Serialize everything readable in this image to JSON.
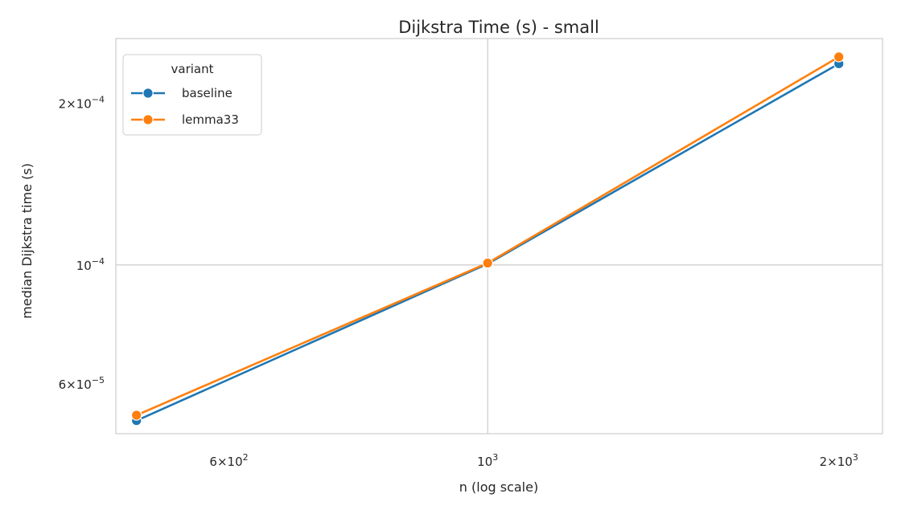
{
  "chart_data": {
    "type": "line",
    "title": "Dijkstra Time (s) - small",
    "xlabel": "n (log scale)",
    "ylabel": "median Dijkstra time (s)",
    "x_scale": "log",
    "y_scale": "log",
    "xlim": [
      480,
      2180
    ],
    "ylim": [
      4.85e-05,
      0.000264
    ],
    "x_ticks": [
      {
        "value": 600,
        "mantissa": "6",
        "exp": "2"
      },
      {
        "value": 1000,
        "mantissa": "",
        "exp": "3"
      },
      {
        "value": 2000,
        "mantissa": "2",
        "exp": "3"
      }
    ],
    "y_ticks": [
      {
        "value": 6e-05,
        "mantissa": "6",
        "exp": "−5"
      },
      {
        "value": 0.0001,
        "mantissa": "",
        "exp": "−4"
      },
      {
        "value": 0.0002,
        "mantissa": "2",
        "exp": "−4"
      }
    ],
    "grid": true,
    "legend": {
      "title": "variant",
      "position": "top-left"
    },
    "x": [
      500,
      1000,
      2000
    ],
    "series": [
      {
        "name": "baseline",
        "color": "#1f77b4",
        "values": [
          5.13e-05,
          0.0001005,
          0.000237
        ]
      },
      {
        "name": "lemma33",
        "color": "#ff7f0e",
        "values": [
          5.25e-05,
          0.0001008,
          0.000244
        ]
      }
    ]
  }
}
